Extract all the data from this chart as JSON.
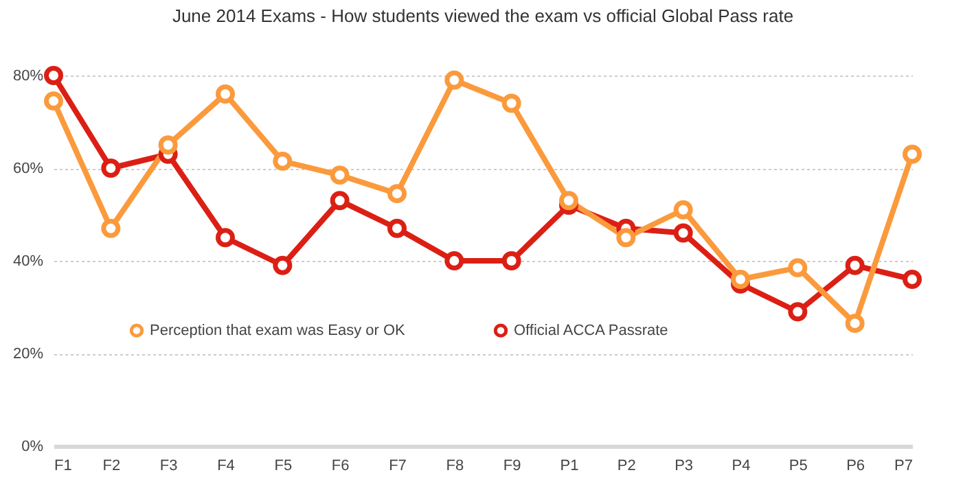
{
  "chart_data": {
    "type": "line",
    "title": "June 2014 Exams - How students viewed the exam vs official Global Pass rate",
    "categories": [
      "F1",
      "F2",
      "F3",
      "F4",
      "F5",
      "F6",
      "F7",
      "F8",
      "F9",
      "P1",
      "P2",
      "P3",
      "P4",
      "P5",
      "P6",
      "P7"
    ],
    "series": [
      {
        "name": "Perception that exam was Easy or OK",
        "color": "#fb9a3c",
        "values": [
          74.5,
          47,
          65,
          76,
          61.5,
          58.5,
          54.5,
          79,
          74,
          53,
          45,
          51,
          36,
          38.5,
          26.5,
          63
        ]
      },
      {
        "name": "Official ACCA Passrate",
        "color": "#dc1f14",
        "values": [
          80,
          60,
          63,
          45,
          39,
          53,
          47,
          40,
          40,
          52,
          47,
          46,
          35,
          29,
          39,
          36
        ]
      }
    ],
    "ylim": [
      0,
      80
    ],
    "yticks": [
      {
        "value": 0,
        "label": "0%"
      },
      {
        "value": 20,
        "label": "20%"
      },
      {
        "value": 40,
        "label": "40%"
      },
      {
        "value": 60,
        "label": "60%"
      },
      {
        "value": 80,
        "label": "80%"
      }
    ],
    "grid": "y",
    "legend": "bottom",
    "marker": "circle",
    "line_style": "solid"
  }
}
